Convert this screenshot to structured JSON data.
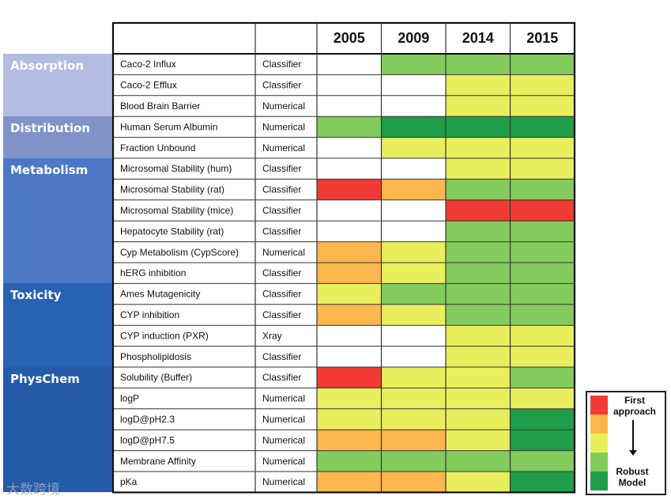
{
  "chart_data": {
    "type": "table",
    "title": "",
    "columns": [
      "2005",
      "2009",
      "2014",
      "2015"
    ],
    "categories": [
      {
        "name": "Absorption",
        "color": "#b4bce2"
      },
      {
        "name": "Distribution",
        "color": "#8094c9"
      },
      {
        "name": "Metabolism",
        "color": "#4c77c4"
      },
      {
        "name": "Toxicity",
        "color": "#2a62b3"
      },
      {
        "name": "PhysChem",
        "color": "#245aa8"
      }
    ],
    "rows": [
      {
        "category": "Absorption",
        "name": "Caco-2 Influx",
        "type": "Classifier",
        "levels": [
          0,
          4,
          4,
          4
        ]
      },
      {
        "category": "Absorption",
        "name": "Caco-2 Efflux",
        "type": "Classifier",
        "levels": [
          0,
          0,
          3,
          3
        ]
      },
      {
        "category": "Absorption",
        "name": "Blood Brain Barrier",
        "type": "Numerical",
        "levels": [
          0,
          0,
          3,
          3
        ]
      },
      {
        "category": "Distribution",
        "name": "Human Serum Albumin",
        "type": "Numerical",
        "levels": [
          4,
          5,
          5,
          5
        ]
      },
      {
        "category": "Distribution",
        "name": "Fraction Unbound",
        "type": "Numerical",
        "levels": [
          0,
          3,
          3,
          3
        ]
      },
      {
        "category": "Metabolism",
        "name": "Microsomal Stability (hum)",
        "type": "Classifier",
        "levels": [
          0,
          0,
          3,
          3
        ]
      },
      {
        "category": "Metabolism",
        "name": "Microsomal Stability (rat)",
        "type": "Classifier",
        "levels": [
          1,
          2,
          4,
          4
        ]
      },
      {
        "category": "Metabolism",
        "name": "Microsomal Stability (mice)",
        "type": "Classifier",
        "levels": [
          0,
          0,
          1,
          1
        ]
      },
      {
        "category": "Metabolism",
        "name": "Hepatocyte Stability (rat)",
        "type": "Classifier",
        "levels": [
          0,
          0,
          4,
          4
        ]
      },
      {
        "category": "Metabolism",
        "name": "Cyp Metabolism (CypScore)",
        "type": "Numerical",
        "levels": [
          2,
          3,
          4,
          4
        ]
      },
      {
        "category": "Metabolism",
        "name": "hERG inhibition",
        "type": "Classifier",
        "levels": [
          2,
          3,
          4,
          4
        ]
      },
      {
        "category": "Toxicity",
        "name": "Ames Mutagenicity",
        "type": "Classifier",
        "levels": [
          3,
          4,
          4,
          4
        ]
      },
      {
        "category": "Toxicity",
        "name": "CYP inhibition",
        "type": "Classifier",
        "levels": [
          2,
          3,
          4,
          4
        ]
      },
      {
        "category": "Toxicity",
        "name": "CYP induction (PXR)",
        "type": "Xray",
        "levels": [
          0,
          0,
          3,
          3
        ]
      },
      {
        "category": "Toxicity",
        "name": "Phospholipidosis",
        "type": "Classifier",
        "levels": [
          0,
          0,
          3,
          3
        ]
      },
      {
        "category": "PhysChem",
        "name": "Solubility (Buffer)",
        "type": "Classifier",
        "levels": [
          1,
          3,
          3,
          4
        ]
      },
      {
        "category": "PhysChem",
        "name": "logP",
        "type": "Numerical",
        "levels": [
          3,
          3,
          3,
          3
        ]
      },
      {
        "category": "PhysChem",
        "name": "logD@pH2.3",
        "type": "Numerical",
        "levels": [
          3,
          3,
          3,
          5
        ]
      },
      {
        "category": "PhysChem",
        "name": "logD@pH7.5",
        "type": "Numerical",
        "levels": [
          2,
          2,
          3,
          5
        ]
      },
      {
        "category": "PhysChem",
        "name": "Membrane Affinity",
        "type": "Numerical",
        "levels": [
          4,
          4,
          4,
          4
        ]
      },
      {
        "category": "PhysChem",
        "name": "pKa",
        "type": "Numerical",
        "levels": [
          2,
          2,
          3,
          5
        ]
      }
    ],
    "level_colors": [
      "#ffffff",
      "#ef3b33",
      "#fbb74d",
      "#e9ee5c",
      "#84cb5e",
      "#1f9e4a"
    ],
    "legend": {
      "top_label": "First approach",
      "bottom_label": "Robust Model",
      "colors": [
        "#ef3b33",
        "#fbb74d",
        "#e9ee5c",
        "#84cb5e",
        "#1f9e4a"
      ]
    }
  },
  "watermark": "大数跨境"
}
